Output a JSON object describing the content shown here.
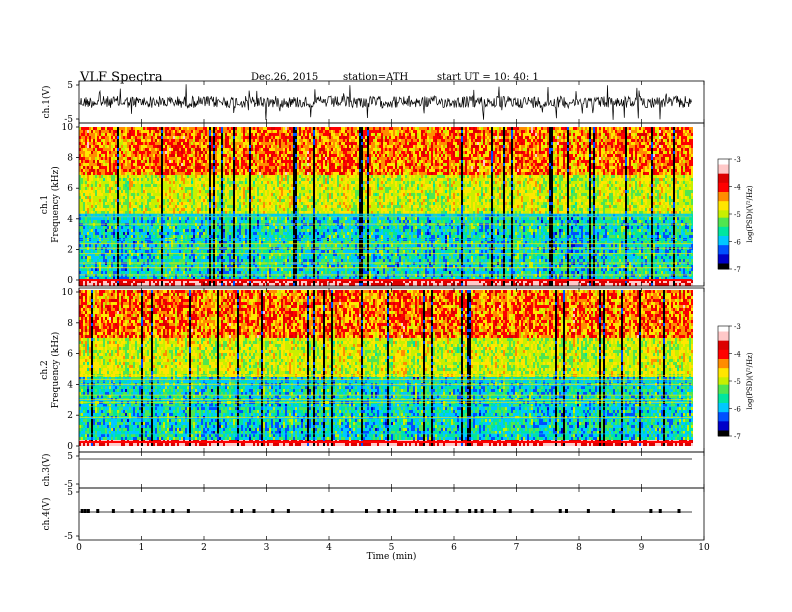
{
  "header": {
    "title": "VLF  Spectra",
    "date": "Dec.26, 2015",
    "station": "station=ATH",
    "start": "start  UT  =   10: 40: 1"
  },
  "chart_data": {
    "type": "heatmap",
    "x_axis": {
      "label": "Time  (min)",
      "range": [
        0,
        10
      ],
      "ticks": [
        0,
        1,
        2,
        3,
        4,
        5,
        6,
        7,
        8,
        9,
        10
      ]
    },
    "panels": [
      {
        "name": "ch1-waveform",
        "type": "line",
        "ylabel": "ch.1(V)",
        "yticks": [
          -5,
          5
        ],
        "ylim": [
          -5,
          5
        ]
      },
      {
        "name": "ch1-spectrogram",
        "type": "heatmap",
        "ylabel": "ch.1\nFrequency  (kHz)",
        "yticks": [
          0,
          2,
          4,
          6,
          8,
          10
        ],
        "ylim": [
          0,
          10
        ],
        "colorbar": {
          "label": "log(PSD)(V²/Hz)",
          "ticks": [
            -3,
            -4,
            -5,
            -6,
            -7
          ],
          "range": [
            -7,
            -3
          ]
        }
      },
      {
        "name": "ch2-spectrogram",
        "type": "heatmap",
        "ylabel": "ch.2\nFrequency  (kHz)",
        "yticks": [
          0,
          2,
          4,
          6,
          8,
          10
        ],
        "ylim": [
          0,
          10
        ],
        "colorbar": {
          "label": "log(PSD)(V²/Hz)",
          "ticks": [
            -3,
            -4,
            -5,
            -6,
            -7
          ],
          "range": [
            -7,
            -3
          ]
        }
      },
      {
        "name": "ch3-waveform",
        "type": "line",
        "ylabel": "ch.3(V)",
        "yticks": [
          -5,
          5
        ],
        "ylim": [
          -5,
          5
        ]
      },
      {
        "name": "ch4-waveform",
        "type": "line",
        "ylabel": "ch.4(V)",
        "yticks": [
          -5,
          5
        ],
        "ylim": [
          -5,
          5
        ],
        "pulse_times_min": [
          0.05,
          0.1,
          0.15,
          0.3,
          0.55,
          0.85,
          1.05,
          1.2,
          1.35,
          1.5,
          1.75,
          2.45,
          2.6,
          2.8,
          3.1,
          3.35,
          3.9,
          4.05,
          4.6,
          4.8,
          4.95,
          5.05,
          5.4,
          5.55,
          5.7,
          5.85,
          6.05,
          6.25,
          6.35,
          6.45,
          6.65,
          6.9,
          7.25,
          7.7,
          7.8,
          8.15,
          8.55,
          9.15,
          9.3,
          9.6
        ]
      }
    ],
    "colormap": [
      "#000000",
      "#0000c8",
      "#0050ff",
      "#00c8ff",
      "#00e6a0",
      "#50e650",
      "#c8f000",
      "#ffe600",
      "#ff8c00",
      "#ff0000",
      "#dc0000",
      "#ffc8c8",
      "#ffffff"
    ]
  }
}
